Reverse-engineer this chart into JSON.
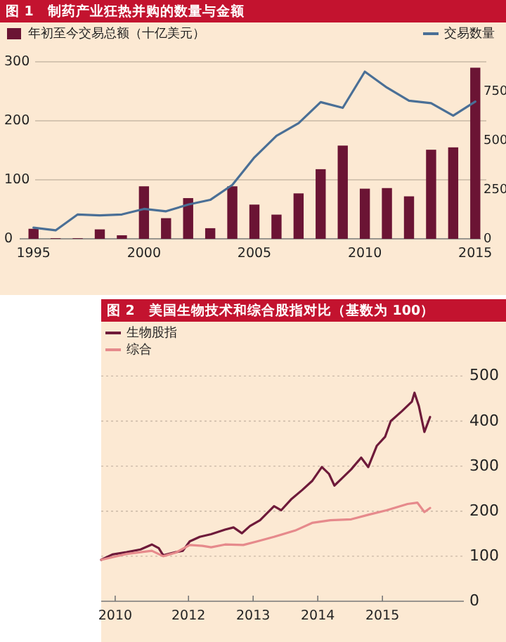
{
  "chart_data": [
    {
      "type": "bar",
      "title": "图 1　制药产业狂热并购的数量与金额",
      "categories": [
        "1995",
        null,
        null,
        null,
        null,
        "2000",
        null,
        null,
        null,
        null,
        "2005",
        null,
        null,
        null,
        null,
        "2010",
        null,
        null,
        null,
        null,
        "2015"
      ],
      "series": [
        {
          "name": "年初至今交易总额（十亿美元）",
          "color": "#6b1434",
          "values": [
            17,
            1,
            1,
            16,
            6,
            89,
            35,
            69,
            18,
            89,
            58,
            41,
            77,
            118,
            158,
            85,
            86,
            72,
            151,
            155,
            290
          ]
        },
        {
          "name": "交易数量",
          "type": "line",
          "axis": "y2",
          "color": "#4a6f96",
          "values": [
            57,
            43,
            124,
            119,
            124,
            152,
            140,
            174,
            198,
            274,
            414,
            524,
            588,
            695,
            666,
            850,
            769,
            702,
            690,
            626,
            698
          ]
        }
      ],
      "ylim": [
        0,
        300
      ],
      "yticks": [
        0,
        100,
        200,
        300
      ],
      "y2lim": [
        0,
        900
      ],
      "y2ticks": [
        0,
        250,
        500,
        750
      ],
      "grid": "y",
      "legend": "top"
    },
    {
      "type": "line",
      "title": "图 2　美国生物技术和综合股指对比（基数为 100）",
      "series": [
        {
          "name": "生物股指",
          "color": "#6e1a3a",
          "x": [
            "2010-08-26",
            "2010-10-28",
            "2011-01-16",
            "2011-04-05",
            "2011-06-08",
            "2011-07-17",
            "2011-08-11",
            "2011-10-21",
            "2011-11-30",
            "2012-01-08",
            "2012-03-05",
            "2012-05-08",
            "2012-07-26",
            "2012-09-12",
            "2012-10-29",
            "2012-12-14",
            "2013-02-09",
            "2013-04-29",
            "2013-06-08",
            "2013-08-03",
            "2013-10-05",
            "2013-11-30",
            "2014-01-24",
            "2014-03-05",
            "2014-04-05",
            "2014-05-15",
            "2014-07-09",
            "2014-09-03",
            "2014-10-13",
            "2014-11-30",
            "2015-01-16",
            "2015-02-17",
            "2015-04-21",
            "2015-06-16",
            "2015-07-01",
            "2015-07-26",
            "2015-08-26",
            "2015-09-27"
          ],
          "values": [
            92,
            104,
            109,
            115,
            126,
            118,
            102,
            109,
            112,
            133,
            143,
            149,
            159,
            164,
            151,
            167,
            180,
            211,
            202,
            226,
            247,
            267,
            298,
            283,
            257,
            272,
            293,
            319,
            298,
            345,
            365,
            400,
            422,
            443,
            463,
            433,
            376,
            409
          ]
        },
        {
          "name": "综合",
          "color": "#e68a8c",
          "x": [
            "2010-08-26",
            "2011-01-16",
            "2011-06-08",
            "2011-08-11",
            "2011-10-21",
            "2012-01-08",
            "2012-03-20",
            "2012-05-08",
            "2012-07-26",
            "2012-11-06",
            "2013-01-24",
            "2013-04-29",
            "2013-08-26",
            "2013-11-30",
            "2014-03-13",
            "2014-07-09",
            "2014-10-13",
            "2015-01-24",
            "2015-05-23",
            "2015-07-17",
            "2015-08-26",
            "2015-09-27"
          ],
          "values": [
            92,
            105,
            112,
            100,
            108,
            125,
            123,
            120,
            126,
            125,
            133,
            143,
            157,
            174,
            180,
            182,
            192,
            202,
            216,
            219,
            198,
            207
          ]
        }
      ],
      "xlim": [
        "2010-08-26",
        "2016-04-05"
      ],
      "xticks": [
        {
          "value": "2010-11-13",
          "label": "2010"
        },
        "2012",
        "2013",
        "2014",
        "2015"
      ],
      "ylim": [
        0,
        500
      ],
      "yticks": [
        0,
        100,
        200,
        300,
        400,
        500
      ],
      "grid": "y",
      "legend": "top left"
    }
  ]
}
